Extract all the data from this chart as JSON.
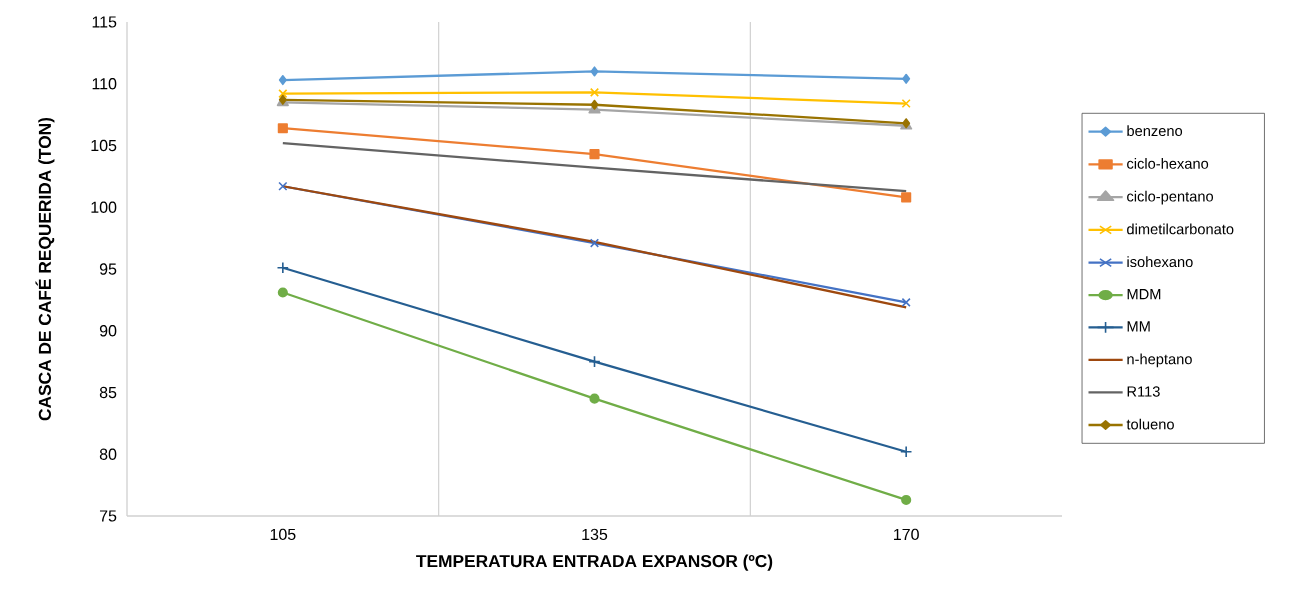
{
  "chart_data": {
    "type": "line",
    "xlabel": "TEMPERATURA ENTRADA EXPANSOR (ºC)",
    "ylabel": "CASCA DE CAFÉ REQUERIDA (TON)",
    "categories": [
      "105",
      "135",
      "170"
    ],
    "ylim": [
      75,
      115
    ],
    "yticks": [
      75,
      80,
      85,
      90,
      95,
      100,
      105,
      110,
      115
    ],
    "grid": "x",
    "legend": "right",
    "line_style": "solid",
    "series": [
      {
        "name": "benzeno",
        "color": "#5b9bd5",
        "marker": "diamond",
        "values": [
          110.3,
          111.0,
          110.4
        ]
      },
      {
        "name": "ciclo-hexano",
        "color": "#ed7d31",
        "marker": "square",
        "values": [
          106.4,
          104.3,
          100.8
        ]
      },
      {
        "name": "ciclo-pentano",
        "color": "#a5a5a5",
        "marker": "triangle",
        "values": [
          108.5,
          107.9,
          106.6
        ]
      },
      {
        "name": "dimetilcarbonato",
        "color": "#ffc000",
        "marker": "cross",
        "values": [
          109.2,
          109.3,
          108.4
        ]
      },
      {
        "name": "isohexano",
        "color": "#4472c4",
        "marker": "cross",
        "values": [
          101.7,
          97.1,
          92.3
        ]
      },
      {
        "name": "MDM",
        "color": "#70ad47",
        "marker": "circle",
        "values": [
          93.1,
          84.5,
          76.3
        ]
      },
      {
        "name": "MM",
        "color": "#255e91",
        "marker": "plus",
        "values": [
          95.1,
          87.5,
          80.2
        ]
      },
      {
        "name": "n-heptano",
        "color": "#9e480e",
        "marker": "none",
        "values": [
          101.7,
          97.2,
          91.9
        ]
      },
      {
        "name": "R113",
        "color": "#636363",
        "marker": "none",
        "values": [
          105.2,
          103.2,
          101.3
        ]
      },
      {
        "name": "tolueno",
        "color": "#997300",
        "marker": "diamond",
        "values": [
          108.7,
          108.3,
          106.8
        ]
      }
    ]
  }
}
